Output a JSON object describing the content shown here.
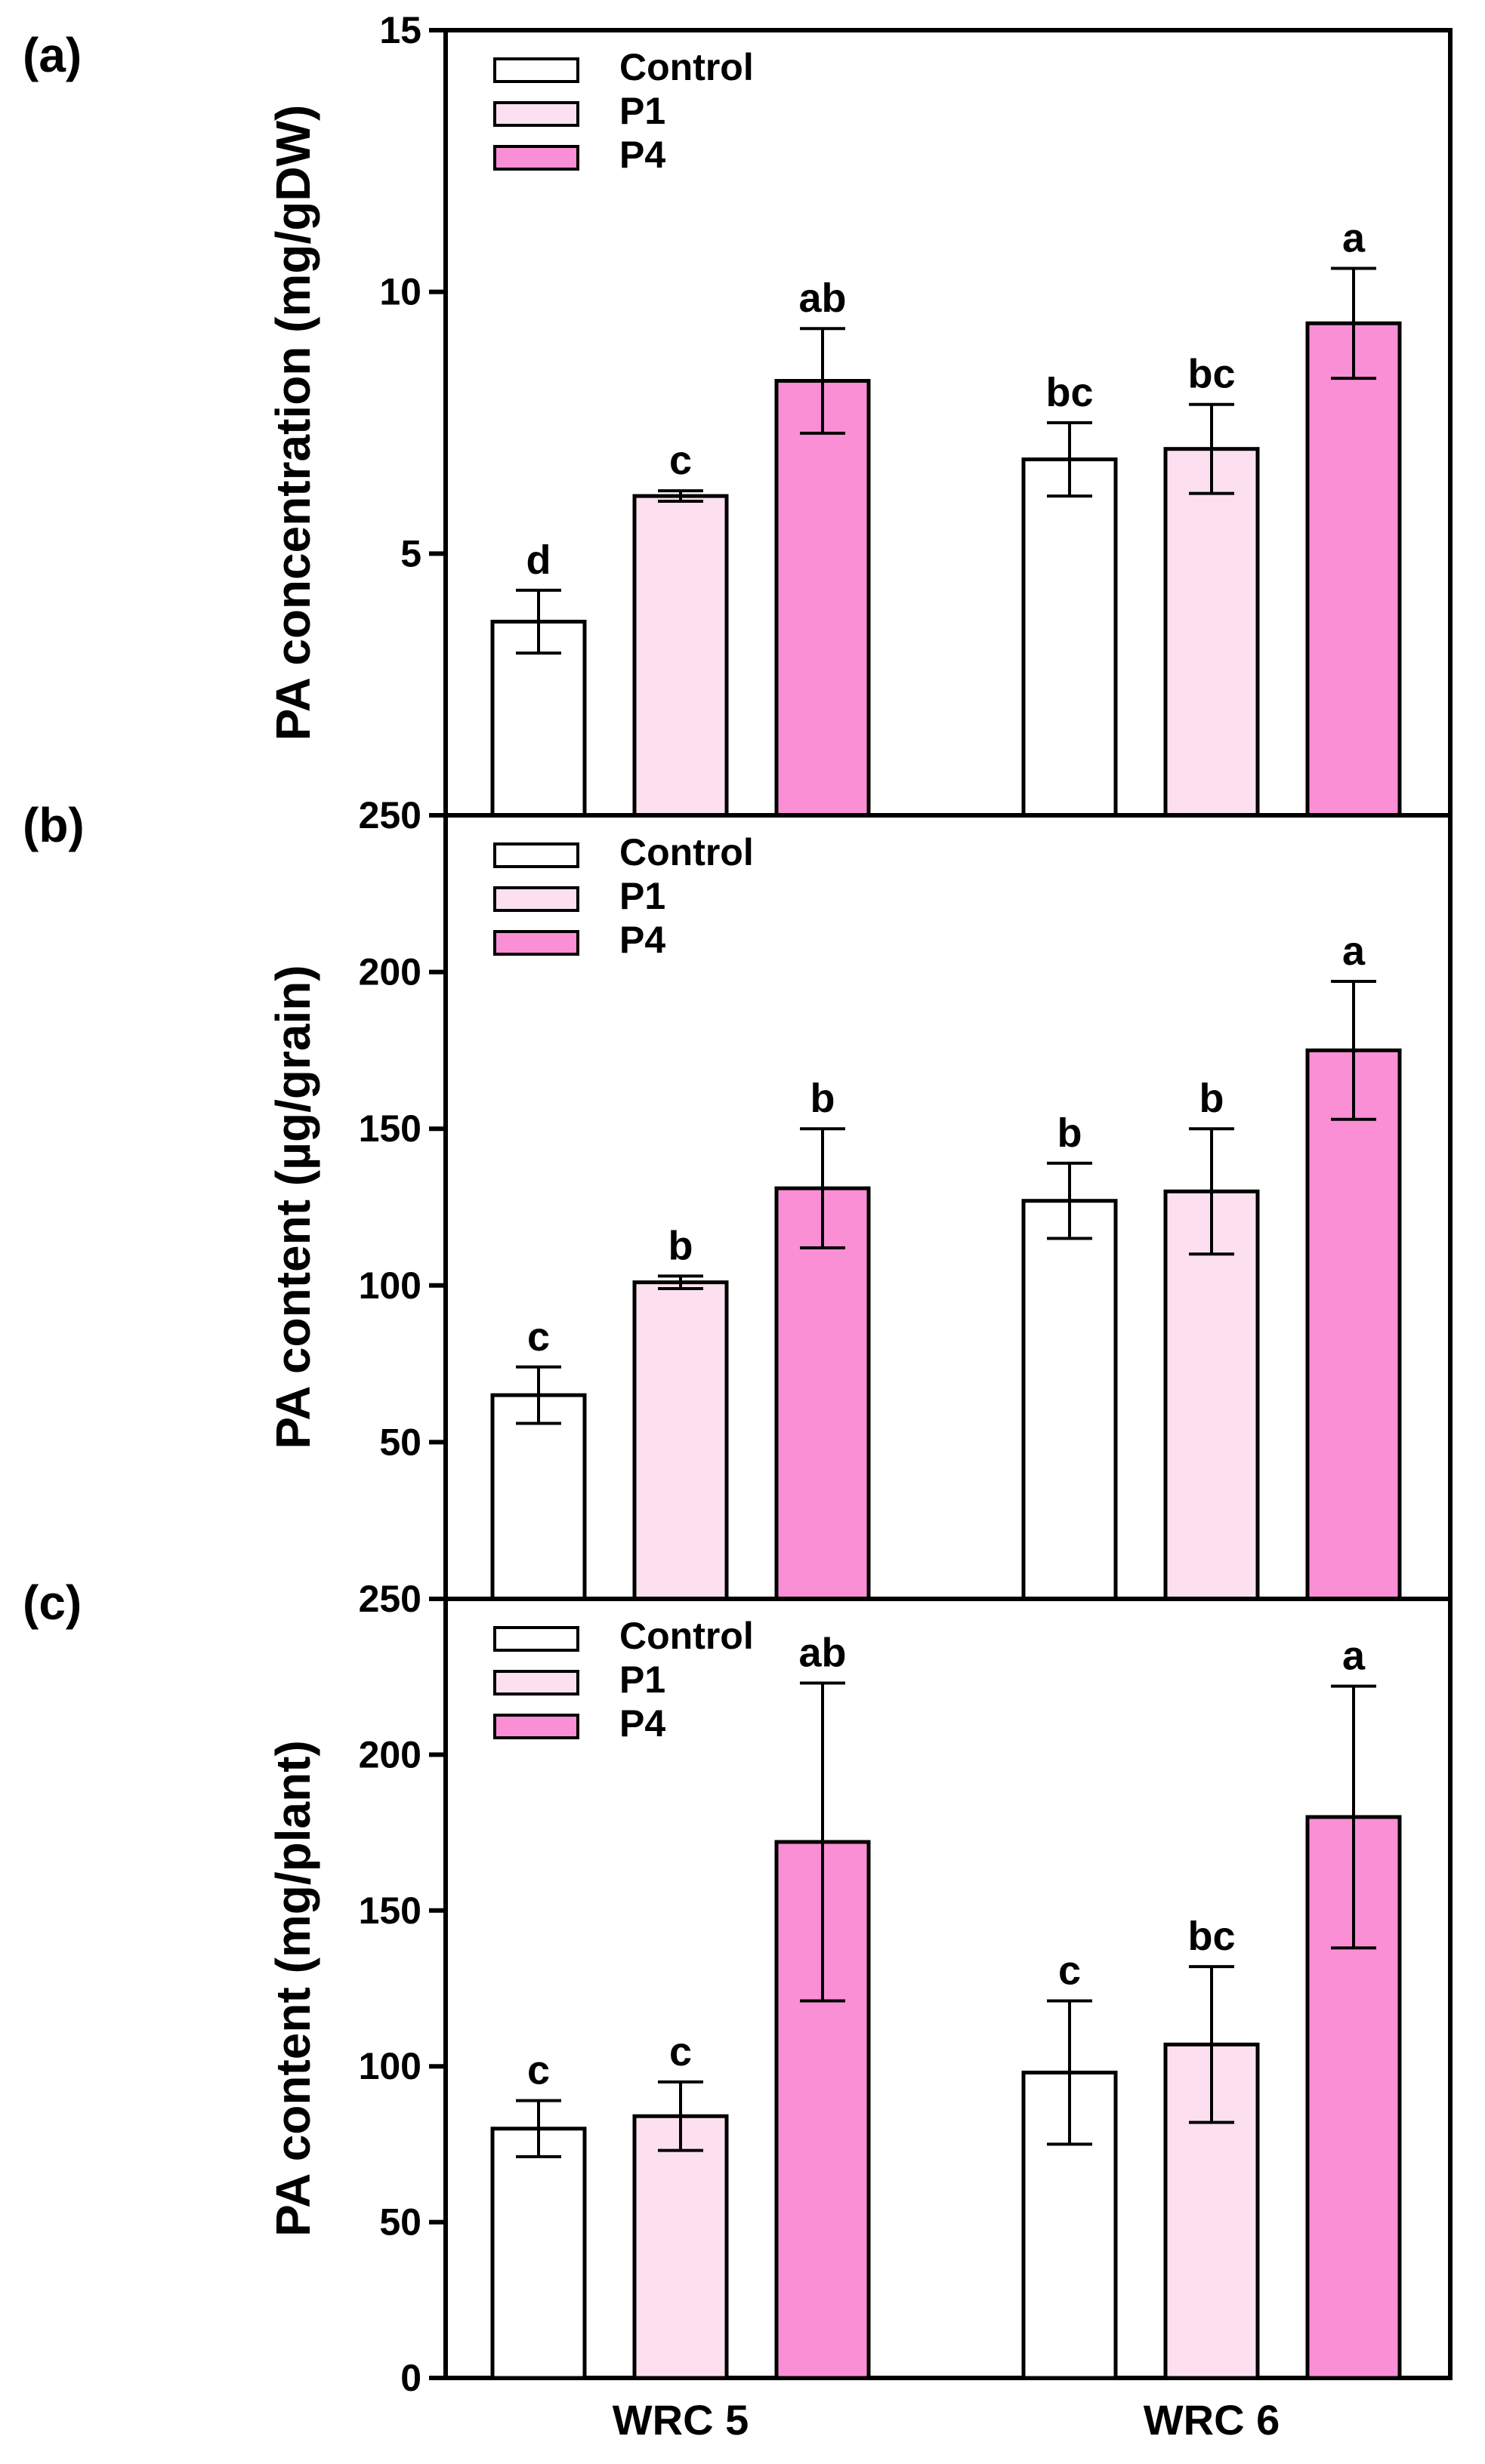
{
  "chart_data": [
    {
      "type": "bar",
      "panel_label": "(a)",
      "ylabel": "PA concentration (mg/gDW)",
      "ylim": [
        0,
        15
      ],
      "y_ticks": [
        5,
        10,
        15
      ],
      "y_tick_labels": [
        "5",
        "10",
        "15"
      ],
      "categories": [
        "WRC 5",
        "WRC 6"
      ],
      "show_categories": false,
      "legend": {
        "position": "top-left",
        "entries": [
          "Control",
          "P1",
          "P4"
        ]
      },
      "series": [
        {
          "name": "Control",
          "color": "#ffffff",
          "values": [
            3.7,
            6.8
          ],
          "errors": [
            0.6,
            0.7
          ],
          "letters": [
            "d",
            "bc"
          ]
        },
        {
          "name": "P1",
          "color": "#fde0f0",
          "values": [
            6.1,
            7.0
          ],
          "errors": [
            0.1,
            0.85
          ],
          "letters": [
            "c",
            "bc"
          ]
        },
        {
          "name": "P4",
          "color": "#fb8fd6",
          "values": [
            8.3,
            9.4
          ],
          "errors": [
            1.0,
            1.05
          ],
          "letters": [
            "ab",
            "a"
          ]
        }
      ]
    },
    {
      "type": "bar",
      "panel_label": "(b)",
      "ylabel": "PA content (µg/grain)",
      "ylim": [
        0,
        250
      ],
      "y_ticks": [
        50,
        100,
        150,
        200,
        250
      ],
      "y_tick_labels": [
        "50",
        "100",
        "150",
        "200",
        "250"
      ],
      "categories": [
        "WRC 5",
        "WRC 6"
      ],
      "show_categories": false,
      "legend": {
        "position": "top-left",
        "entries": [
          "Control",
          "P1",
          "P4"
        ]
      },
      "series": [
        {
          "name": "Control",
          "color": "#ffffff",
          "values": [
            65,
            127
          ],
          "errors": [
            9,
            12
          ],
          "letters": [
            "c",
            "b"
          ]
        },
        {
          "name": "P1",
          "color": "#fde0f0",
          "values": [
            101,
            130
          ],
          "errors": [
            2,
            20
          ],
          "letters": [
            "b",
            "b"
          ]
        },
        {
          "name": "P4",
          "color": "#fb8fd6",
          "values": [
            131,
            175
          ],
          "errors": [
            19,
            22
          ],
          "letters": [
            "b",
            "a"
          ]
        }
      ]
    },
    {
      "type": "bar",
      "panel_label": "(c)",
      "ylabel": "PA content (mg/plant)",
      "ylim": [
        0,
        250
      ],
      "y_ticks": [
        0,
        50,
        100,
        150,
        200,
        250
      ],
      "y_tick_labels": [
        "0",
        "50",
        "100",
        "150",
        "200",
        "250"
      ],
      "categories": [
        "WRC 5",
        "WRC 6"
      ],
      "show_categories": true,
      "legend": {
        "position": "top-left",
        "entries": [
          "Control",
          "P1",
          "P4"
        ]
      },
      "series": [
        {
          "name": "Control",
          "color": "#ffffff",
          "values": [
            80,
            98
          ],
          "errors": [
            9,
            23
          ],
          "letters": [
            "c",
            "c"
          ]
        },
        {
          "name": "P1",
          "color": "#fde0f0",
          "values": [
            84,
            107
          ],
          "errors": [
            11,
            25
          ],
          "letters": [
            "c",
            "bc"
          ]
        },
        {
          "name": "P4",
          "color": "#fb8fd6",
          "values": [
            172,
            180
          ],
          "errors": [
            51,
            42
          ],
          "letters": [
            "ab",
            "a"
          ]
        }
      ]
    }
  ]
}
